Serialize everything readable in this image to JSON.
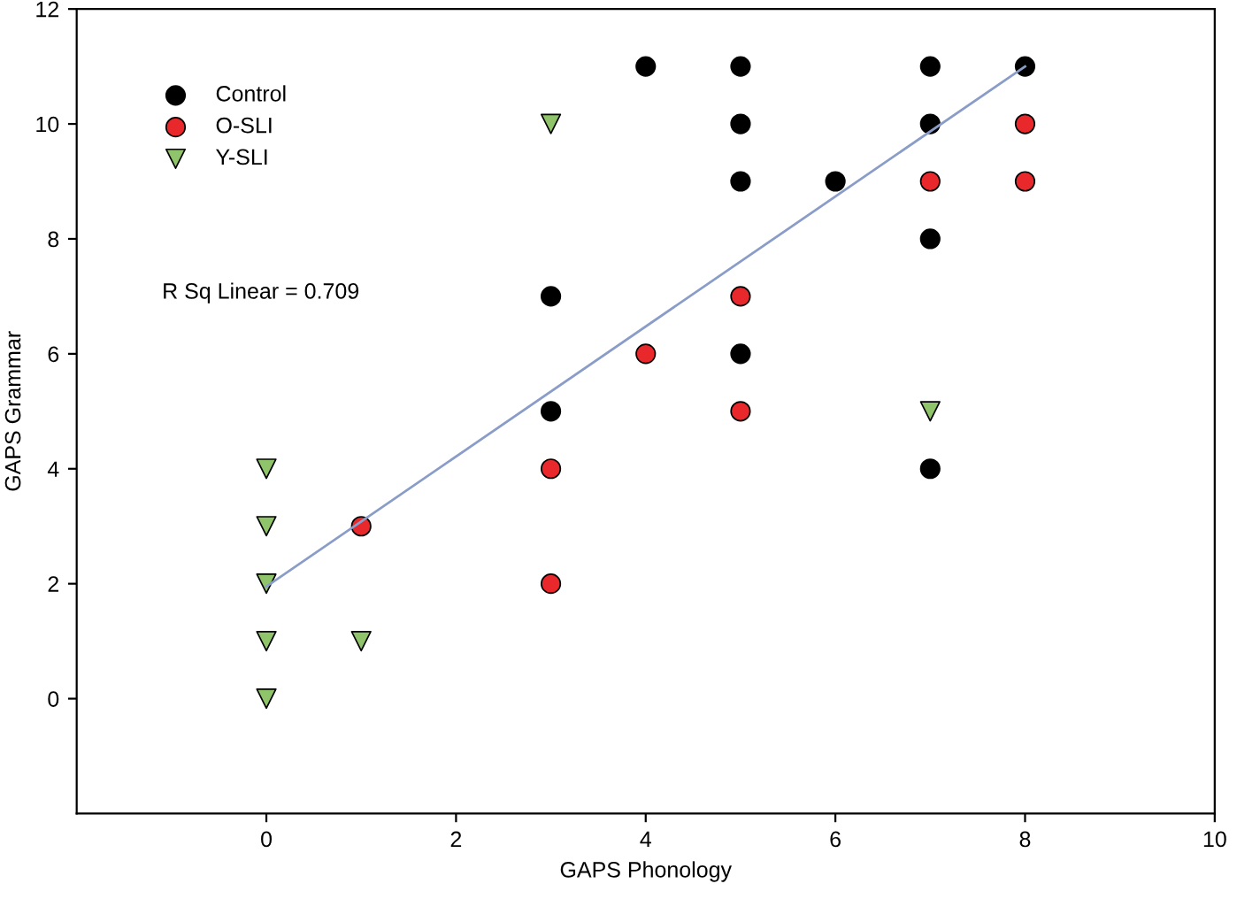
{
  "chart_data": {
    "type": "scatter",
    "xlabel": "GAPS Phonology",
    "ylabel": "GAPS Grammar",
    "xlim": [
      -2,
      10
    ],
    "ylim": [
      -2,
      12
    ],
    "xticks": [
      0,
      2,
      4,
      6,
      8,
      10
    ],
    "yticks": [
      0,
      2,
      4,
      6,
      8,
      10,
      12
    ],
    "grid": false,
    "legend": "top left",
    "annotations": [
      "R Sq Linear = 0.709"
    ],
    "series": [
      {
        "name": "Control",
        "color": "#000000",
        "marker": "circle",
        "x": [
          4,
          5,
          7,
          8,
          5,
          7,
          5,
          6,
          7,
          3,
          5,
          3,
          7
        ],
        "values": [
          11,
          11,
          11,
          11,
          10,
          10,
          9,
          9,
          8,
          7,
          6,
          5,
          4
        ]
      },
      {
        "name": "O-SLI",
        "color": "#e8282b",
        "marker": "circle",
        "x": [
          8,
          7,
          8,
          5,
          4,
          5,
          3,
          1,
          3
        ],
        "values": [
          10,
          9,
          9,
          7,
          6,
          5,
          4,
          3,
          2
        ]
      },
      {
        "name": "Y-SLI",
        "color": "#8fc46a",
        "marker": "triangle",
        "x": [
          3,
          7,
          0,
          0,
          0,
          0,
          1,
          0
        ],
        "values": [
          10,
          5,
          4,
          3,
          2,
          1,
          1,
          0
        ]
      },
      {
        "type": "line",
        "color": "#8a9cc8",
        "marker": "none",
        "x": [
          0,
          8
        ],
        "values": [
          1.95,
          11
        ]
      }
    ]
  }
}
